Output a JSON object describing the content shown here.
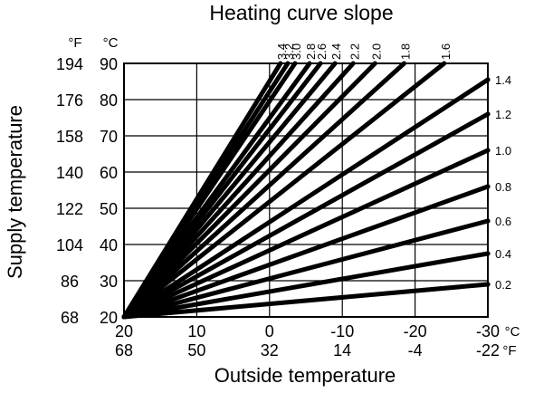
{
  "chart_data": {
    "type": "line",
    "title": "Heating curve slope",
    "xlabel": "Outside temperature",
    "ylabel": "Supply temperature",
    "grid": true,
    "x": {
      "unit": "°C",
      "secondary_unit": "°F",
      "range": [
        20,
        -30
      ],
      "ticks_c": [
        "20",
        "10",
        "0",
        "-10",
        "-20",
        "-30"
      ],
      "ticks_f": [
        "68",
        "50",
        "32",
        "14",
        "-4",
        "-22"
      ]
    },
    "y": {
      "unit": "°C",
      "secondary_unit": "°F",
      "range": [
        20,
        90
      ],
      "ticks_c": [
        "20",
        "30",
        "40",
        "50",
        "60",
        "70",
        "80",
        "90"
      ],
      "ticks_f": [
        "68",
        "86",
        "104",
        "122",
        "140",
        "158",
        "176",
        "194"
      ]
    },
    "curves_origin": {
      "outside_c": 20,
      "supply_c": 20
    },
    "series": [
      {
        "label": "3.4",
        "end": {
          "outside_c": -1.5,
          "supply_c": 90
        },
        "label_at": "top"
      },
      {
        "label": "3.2",
        "end": {
          "outside_c": -2.5,
          "supply_c": 90
        },
        "label_at": "top"
      },
      {
        "label": "3.0",
        "end": {
          "outside_c": -3.5,
          "supply_c": 90
        },
        "label_at": "top"
      },
      {
        "label": "2.8",
        "end": {
          "outside_c": -5.5,
          "supply_c": 90
        },
        "label_at": "top"
      },
      {
        "label": "2.6",
        "end": {
          "outside_c": -7.0,
          "supply_c": 90
        },
        "label_at": "top"
      },
      {
        "label": "2.4",
        "end": {
          "outside_c": -9.0,
          "supply_c": 90
        },
        "label_at": "top"
      },
      {
        "label": "2.2",
        "end": {
          "outside_c": -11.5,
          "supply_c": 90
        },
        "label_at": "top"
      },
      {
        "label": "2.0",
        "end": {
          "outside_c": -14.5,
          "supply_c": 90
        },
        "label_at": "top"
      },
      {
        "label": "1.8",
        "end": {
          "outside_c": -18.5,
          "supply_c": 90
        },
        "label_at": "top"
      },
      {
        "label": "1.6",
        "end": {
          "outside_c": -24.0,
          "supply_c": 90
        },
        "label_at": "top"
      },
      {
        "label": "1.4",
        "end": {
          "outside_c": -30,
          "supply_c": 85.5
        },
        "label_at": "right"
      },
      {
        "label": "1.2",
        "end": {
          "outside_c": -30,
          "supply_c": 76
        },
        "label_at": "right"
      },
      {
        "label": "1.0",
        "end": {
          "outside_c": -30,
          "supply_c": 66
        },
        "label_at": "right"
      },
      {
        "label": "0.8",
        "end": {
          "outside_c": -30,
          "supply_c": 56
        },
        "label_at": "right"
      },
      {
        "label": "0.6",
        "end": {
          "outside_c": -30,
          "supply_c": 46.5
        },
        "label_at": "right"
      },
      {
        "label": "0.4",
        "end": {
          "outside_c": -30,
          "supply_c": 37.5
        },
        "label_at": "right"
      },
      {
        "label": "0.2",
        "end": {
          "outside_c": -30,
          "supply_c": 29
        },
        "label_at": "right"
      }
    ]
  }
}
